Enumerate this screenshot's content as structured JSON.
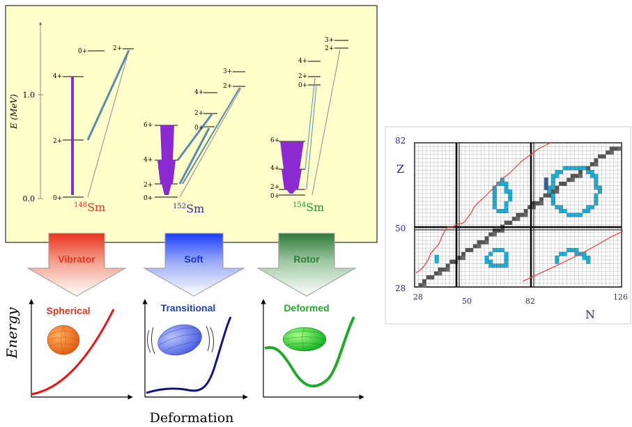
{
  "level_scheme": {
    "y_axis_label": "E (MeV)",
    "y_ticks": [
      "0.0",
      "1.0"
    ],
    "nuclei": [
      {
        "mass": "148",
        "symbol": "Sm",
        "color": "#e8321e",
        "levels": [
          "0+",
          "2+",
          "4+",
          "0+",
          "2+"
        ]
      },
      {
        "mass": "152",
        "symbol": "Sm",
        "color": "#2a2a8c",
        "levels": [
          "0+",
          "2+",
          "4+",
          "6+",
          "0+",
          "2+",
          "4+",
          "2+",
          "3+"
        ]
      },
      {
        "mass": "154",
        "symbol": "Sm",
        "color": "#1f9a2a",
        "levels": [
          "0+",
          "2+",
          "4+",
          "6+",
          "0+",
          "2+",
          "4+",
          "2+",
          "3+"
        ]
      }
    ]
  },
  "arrows": [
    {
      "label": "Vibrator",
      "color": "#e8321e"
    },
    {
      "label": "Soft",
      "color": "#1a2fd0"
    },
    {
      "label": "Rotor",
      "color": "#2f7a3a"
    }
  ],
  "potentials": {
    "y_label": "Energy",
    "x_label": "Deformation",
    "panels": [
      {
        "label": "Spherical",
        "color": "#e8321e"
      },
      {
        "label": "Transitional",
        "color": "#2340b8"
      },
      {
        "label": "Deformed",
        "color": "#22a82a"
      }
    ]
  },
  "nuclide_chart": {
    "z_label": "Z",
    "n_label": "N",
    "z_ticks": [
      "82",
      "50",
      "28"
    ],
    "n_ticks": [
      "28",
      "50",
      "82",
      "126"
    ]
  }
}
